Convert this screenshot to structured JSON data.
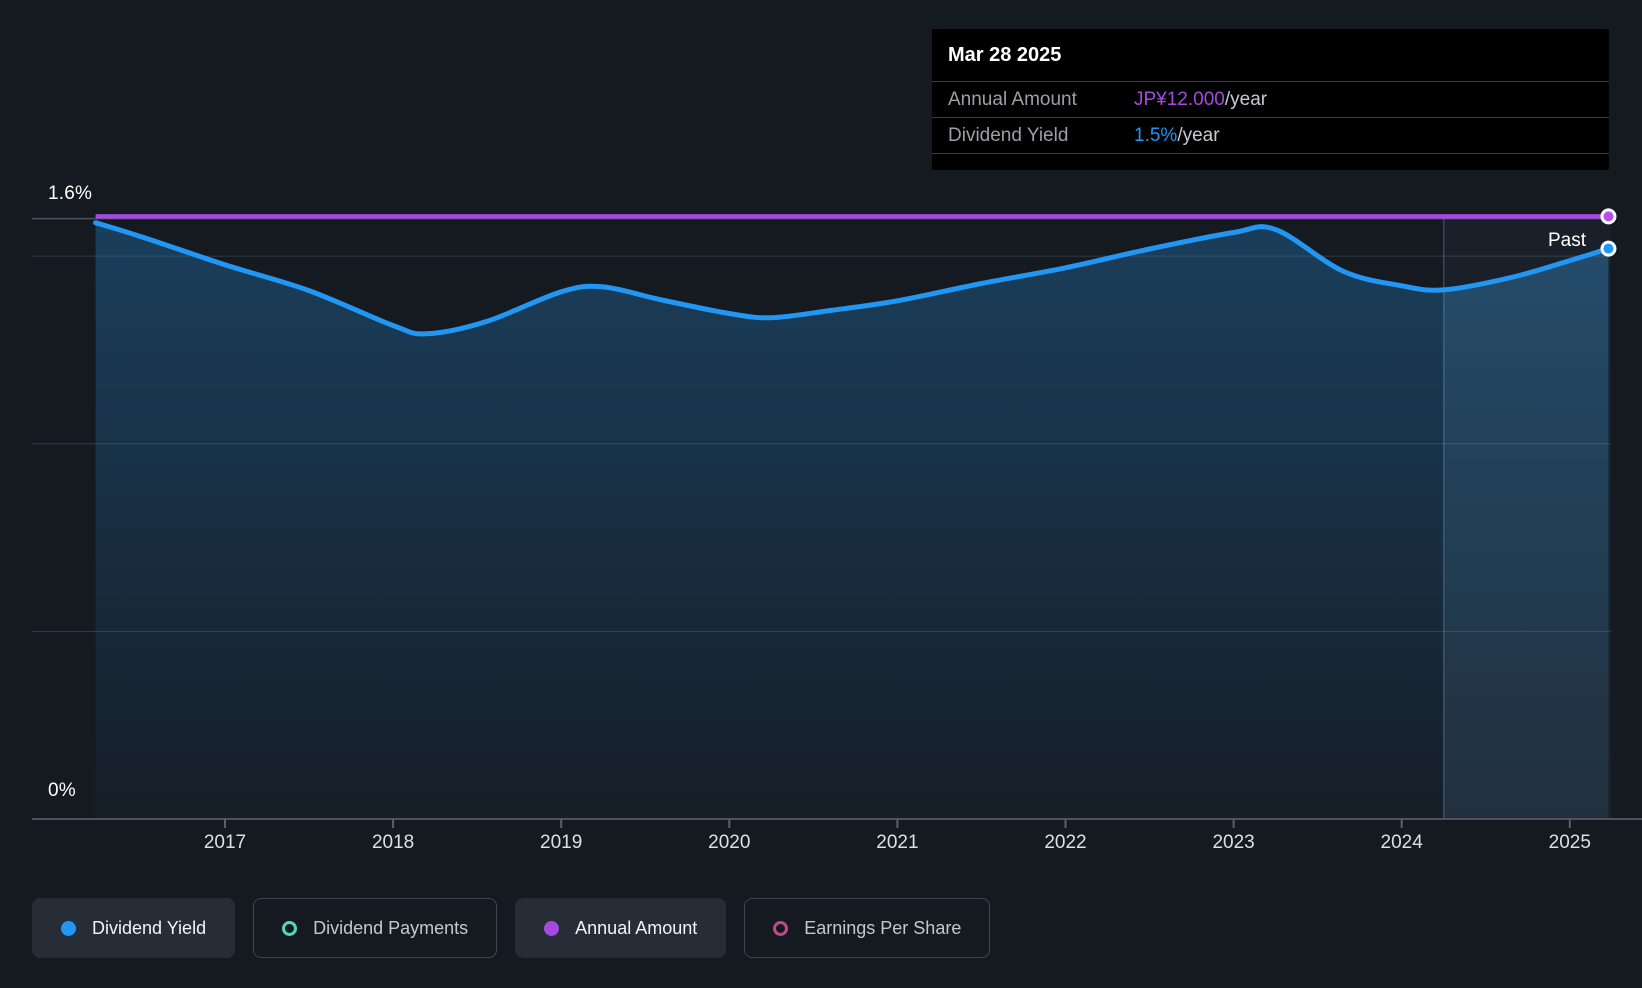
{
  "page": {
    "background_color": "#151a21",
    "accent_blue": "#2196f3",
    "accent_purple": "#a44ae0",
    "accent_teal": "#4fd6c2",
    "accent_pink": "#bd4a8c"
  },
  "tooltip": {
    "date": "Mar 28 2025",
    "rows": [
      {
        "label": "Annual Amount",
        "value": "JP¥12.000",
        "suffix": "/year",
        "value_color": "#a44ae0"
      },
      {
        "label": "Dividend Yield",
        "value": "1.5%",
        "suffix": "/year",
        "value_color": "#2196f3"
      }
    ]
  },
  "chart": {
    "y_top_label": "1.6%",
    "y_zero_label": "0%",
    "past_label": "Past"
  },
  "legend": {
    "items": [
      {
        "label": "Dividend Yield",
        "marker": "filled",
        "color": "#2196f3",
        "active": true
      },
      {
        "label": "Dividend Payments",
        "marker": "ring",
        "color": "#4fd6c2",
        "active": false
      },
      {
        "label": "Annual Amount",
        "marker": "filled",
        "color": "#a44ae0",
        "active": true
      },
      {
        "label": "Earnings Per Share",
        "marker": "ring",
        "color": "#bd4a8c",
        "active": false
      }
    ]
  },
  "chart_data": {
    "type": "area",
    "xlim": [
      2016.22,
      2025.25
    ],
    "ylim": [
      0,
      1.6
    ],
    "x_ticks": [
      2017,
      2018,
      2019,
      2020,
      2021,
      2022,
      2023,
      2024,
      2025
    ],
    "y_tick_labels": [
      "0%",
      "1.6%"
    ],
    "y_gridlines_pct": [
      0.5,
      1.0,
      1.5,
      1.6
    ],
    "grid": true,
    "legend_position": "bottom",
    "past_divider_x": 2024.25,
    "series": [
      {
        "name": "Dividend Yield",
        "type": "line-area",
        "unit": "percent_per_year",
        "color": "#2196f3",
        "end_value_label": "1.5%/year",
        "points": [
          [
            2016.23,
            1.589
          ],
          [
            2016.5,
            1.552
          ],
          [
            2017.0,
            1.477
          ],
          [
            2017.5,
            1.408
          ],
          [
            2018.0,
            1.315
          ],
          [
            2018.2,
            1.293
          ],
          [
            2018.55,
            1.325
          ],
          [
            2019.0,
            1.405
          ],
          [
            2019.25,
            1.418
          ],
          [
            2019.6,
            1.383
          ],
          [
            2020.0,
            1.347
          ],
          [
            2020.25,
            1.336
          ],
          [
            2020.6,
            1.355
          ],
          [
            2021.0,
            1.381
          ],
          [
            2021.5,
            1.427
          ],
          [
            2022.0,
            1.469
          ],
          [
            2022.5,
            1.519
          ],
          [
            2023.0,
            1.563
          ],
          [
            2023.25,
            1.571
          ],
          [
            2023.65,
            1.46
          ],
          [
            2024.0,
            1.421
          ],
          [
            2024.25,
            1.41
          ],
          [
            2024.65,
            1.443
          ],
          [
            2025.0,
            1.488
          ],
          [
            2025.23,
            1.52
          ]
        ]
      },
      {
        "name": "Annual Amount",
        "type": "flat-line",
        "unit": "JPY_per_year",
        "color": "#a44ae0",
        "value": 12,
        "end_value_label": "JP¥12.000/year",
        "render_pct": 1.606
      }
    ]
  }
}
